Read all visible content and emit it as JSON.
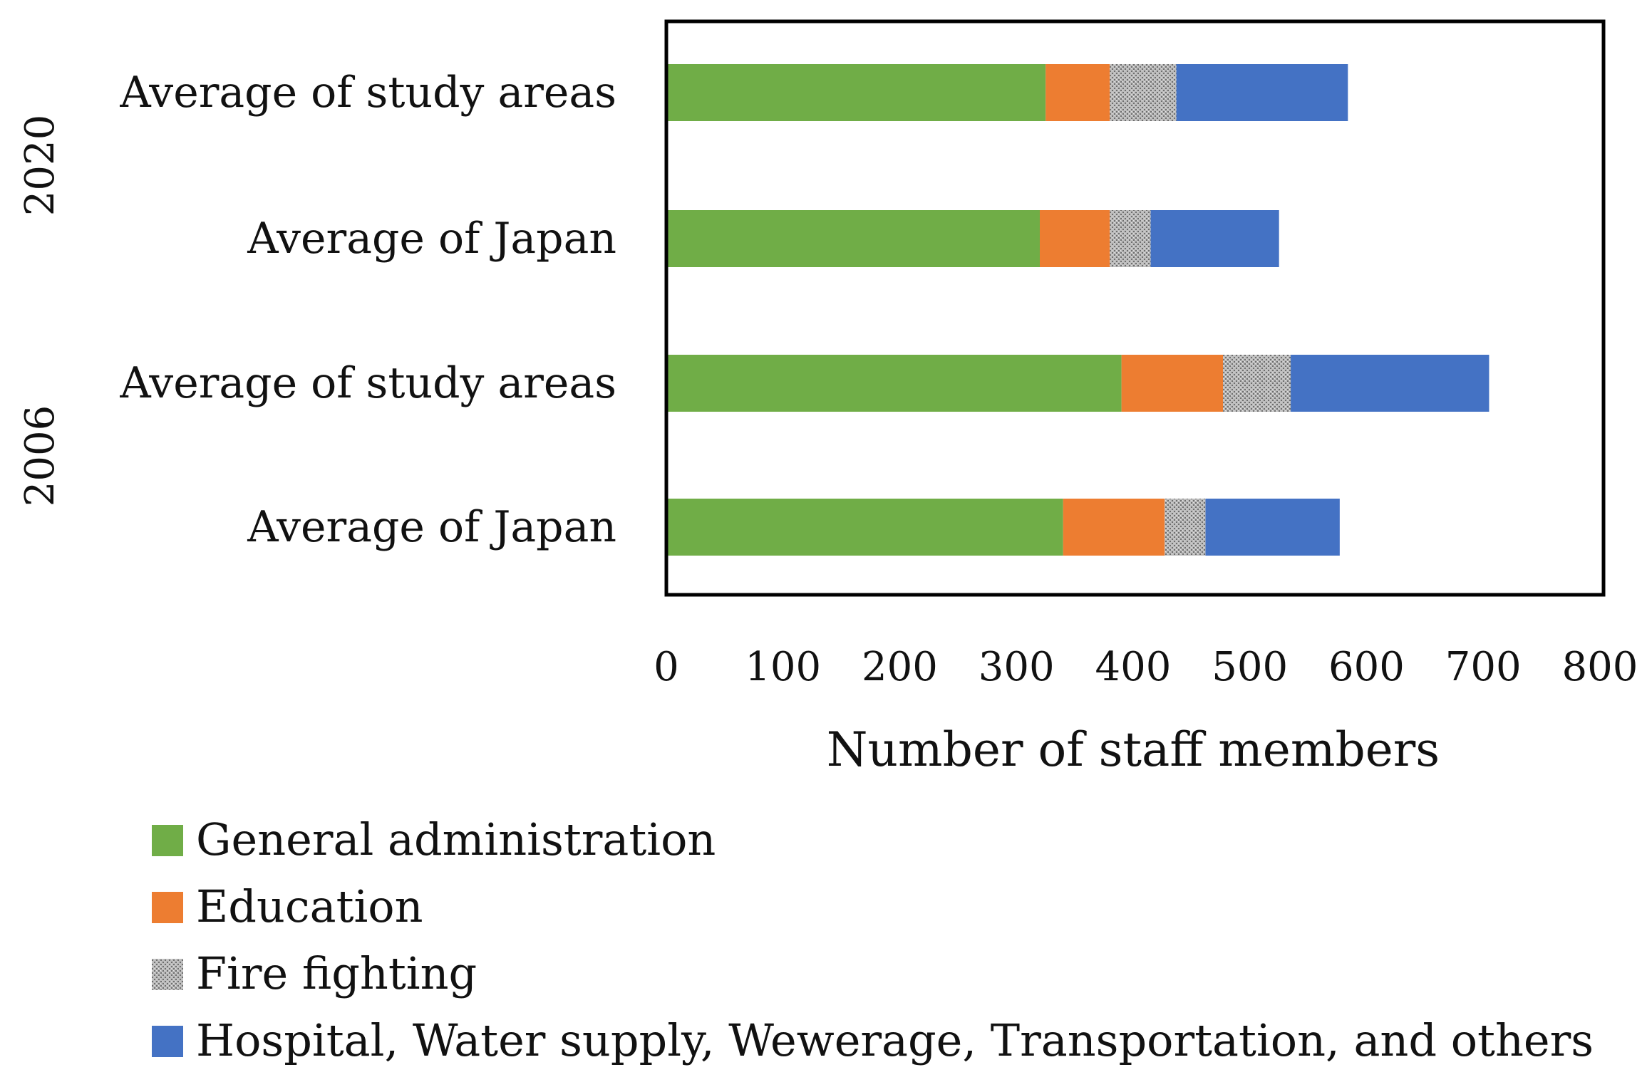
{
  "chart_data": {
    "type": "bar",
    "orientation": "horizontal",
    "stacked": true,
    "title": "",
    "xlabel": "Number of staff members",
    "ylabel": "",
    "xlim": [
      0,
      800
    ],
    "xticks": [
      0,
      100,
      200,
      300,
      400,
      500,
      600,
      700,
      800
    ],
    "grid": false,
    "legend_position": "bottom",
    "groups": [
      {
        "label": "2020",
        "categories": [
          "Average of study areas",
          "Average of Japan"
        ]
      },
      {
        "label": "2006",
        "categories": [
          "Average of study areas",
          "Average of Japan"
        ]
      }
    ],
    "categories": [
      "Average of study areas",
      "Average of Japan",
      "Average of study areas",
      "Average of Japan"
    ],
    "series": [
      {
        "name": "General administration",
        "color": "#70AD47",
        "pattern": "solid",
        "values": [
          325,
          320,
          390,
          340
        ]
      },
      {
        "name": "Education",
        "color": "#ED7D31",
        "pattern": "solid",
        "values": [
          55,
          60,
          87,
          87
        ]
      },
      {
        "name": "Fire fighting",
        "color": "#A5A5A5",
        "pattern": "dotted",
        "values": [
          57,
          35,
          58,
          35
        ]
      },
      {
        "name": "Hospital, Water supply, Wewerage, Transportation, and others",
        "color": "#4472C4",
        "pattern": "solid",
        "values": [
          147,
          110,
          170,
          115
        ]
      }
    ]
  }
}
